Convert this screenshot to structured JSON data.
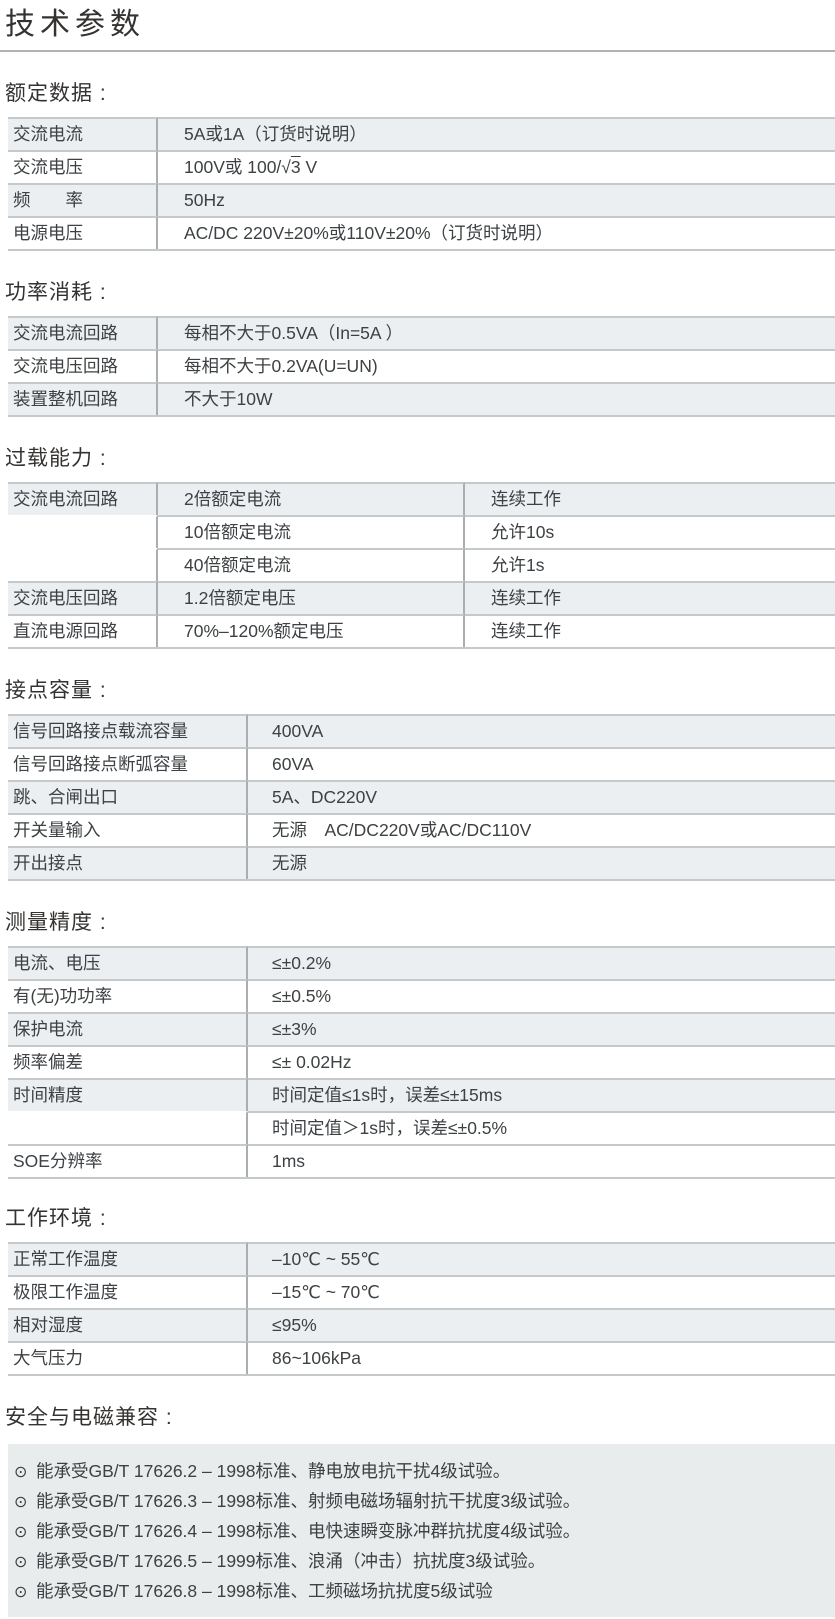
{
  "page": {
    "title": "技术参数"
  },
  "colors": {
    "row_gray": "#eceff1",
    "emc_block_gray": "#e9eced",
    "border_horizontal": "#c5c9ca",
    "border_vertical": "#a9aeb0",
    "title_rule": "#b0b3b4",
    "text": "#3d4143"
  },
  "sections": {
    "rated": {
      "heading": "额定数据 :",
      "rows": [
        {
          "label": "交流电流",
          "value": "5A或1A（订货时说明）"
        },
        {
          "label": "交流电压",
          "value_prefix": "100V或 100/",
          "radical": "√",
          "radicand": "3",
          "value_suffix": " V"
        },
        {
          "label": "频　　率",
          "value": "50Hz"
        },
        {
          "label": "电源电压",
          "value": "AC/DC 220V±20%或110V±20%（订货时说明）"
        }
      ]
    },
    "power": {
      "heading": "功率消耗 :",
      "rows": [
        {
          "label": "交流电流回路",
          "value": "每相不大于0.5VA（In=5A ）"
        },
        {
          "label": "交流电压回路",
          "value": "每相不大于0.2VA(U=UN)"
        },
        {
          "label": "装置整机回路",
          "value": "不大于10W"
        }
      ]
    },
    "overload": {
      "heading": "过载能力 :",
      "rows": [
        {
          "label": "交流电流回路",
          "condition": "2倍额定电流",
          "result": "连续工作"
        },
        {
          "label": "",
          "condition": "10倍额定电流",
          "result": "允许10s"
        },
        {
          "label": "",
          "condition": "40倍额定电流",
          "result": "允许1s"
        },
        {
          "label": "交流电压回路",
          "condition": "1.2倍额定电压",
          "result": "连续工作"
        },
        {
          "label": "直流电源回路",
          "condition": "70%–120%额定电压",
          "result": "连续工作"
        }
      ]
    },
    "contact": {
      "heading": "接点容量 :",
      "rows": [
        {
          "label": "信号回路接点载流容量",
          "value": "400VA"
        },
        {
          "label": "信号回路接点断弧容量",
          "value": "60VA"
        },
        {
          "label": "跳、合闸出口",
          "value": "5A、DC220V"
        },
        {
          "label": "开关量输入",
          "value": "无源　AC/DC220V或AC/DC110V"
        },
        {
          "label": "开出接点",
          "value": "无源"
        }
      ]
    },
    "accuracy": {
      "heading": "测量精度 :",
      "rows": [
        {
          "label": "电流、电压",
          "value": "≤±0.2%"
        },
        {
          "label": "有(无)功功率",
          "value": "≤±0.5%"
        },
        {
          "label": "保护电流",
          "value": "≤±3%"
        },
        {
          "label": "频率偏差",
          "value": "≤± 0.02Hz"
        },
        {
          "label": "时间精度",
          "value": "时间定值≤1s时，误差≤±15ms"
        },
        {
          "label": "",
          "value": "时间定值＞1s时，误差≤±0.5%"
        },
        {
          "label": "SOE分辨率",
          "value": "1ms"
        }
      ]
    },
    "environment": {
      "heading": "工作环境 :",
      "rows": [
        {
          "label": "正常工作温度",
          "value": "–10℃ ~ 55℃"
        },
        {
          "label": "极限工作温度",
          "value": "–15℃ ~ 70℃"
        },
        {
          "label": "相对湿度",
          "value": "≤95%"
        },
        {
          "label": "大气压力",
          "value": "86~106kPa"
        }
      ]
    },
    "emc": {
      "heading": "安全与电磁兼容 :",
      "bullet": "⊙",
      "items": [
        "能承受GB/T 17626.2 – 1998标准、静电放电抗干扰4级试验。",
        "能承受GB/T 17626.3 – 1998标准、射频电磁场辐射抗干扰度3级试验。",
        "能承受GB/T 17626.4 – 1998标准、电快速瞬变脉冲群抗扰度4级试验。",
        "能承受GB/T 17626.5 – 1999标准、浪涌（冲击）抗扰度3级试验。",
        "能承受GB/T 17626.8 – 1998标准、工频磁场抗扰度5级试验"
      ]
    }
  }
}
